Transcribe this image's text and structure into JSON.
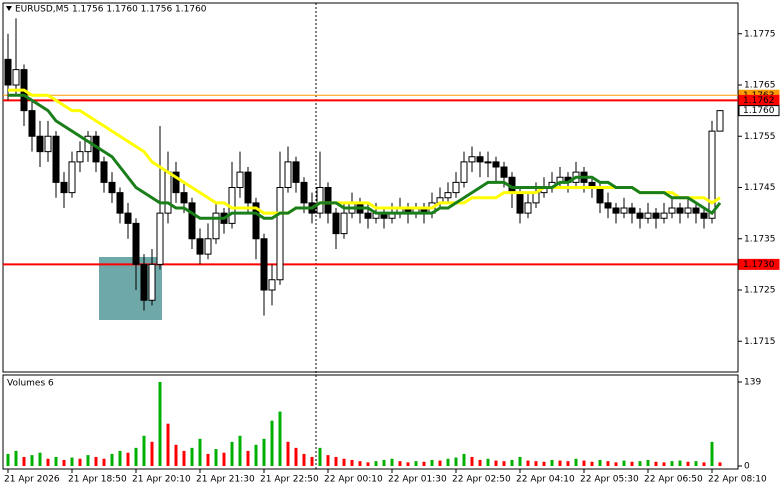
{
  "chart_data": {
    "type": "candlestick",
    "title": "EURUSD,M5  1.1756 1.1760 1.1756 1.1760",
    "volume_title": "Volumes 6",
    "categories": [
      "21 Apr 2026",
      null,
      null,
      null,
      null,
      null,
      null,
      null,
      "21 Apr 18:50",
      null,
      null,
      null,
      null,
      null,
      null,
      null,
      "21 Apr 20:10",
      null,
      null,
      null,
      null,
      null,
      null,
      null,
      "21 Apr 21:30",
      null,
      null,
      null,
      null,
      null,
      null,
      null,
      "21 Apr 22:50",
      null,
      null,
      null,
      null,
      null,
      null,
      null,
      "22 Apr 00:10",
      null,
      null,
      null,
      null,
      null,
      null,
      null,
      "22 Apr 01:30",
      null,
      null,
      null,
      null,
      null,
      null,
      null,
      "22 Apr 02:50",
      null,
      null,
      null,
      null,
      null,
      null,
      null,
      "22 Apr 04:10",
      null,
      null,
      null,
      null,
      null,
      null,
      null,
      "22 Apr 05:30",
      null,
      null,
      null,
      null,
      null,
      null,
      null,
      "22 Apr 06:50",
      null,
      null,
      null,
      null,
      null,
      null,
      null,
      "22 Apr 08:10",
      null
    ],
    "ohlc": [
      [
        1.177,
        1.1775,
        1.1762,
        1.1765
      ],
      [
        1.1765,
        1.1778,
        1.1763,
        1.1768
      ],
      [
        1.1768,
        1.1769,
        1.1757,
        1.176
      ],
      [
        1.176,
        1.1762,
        1.1752,
        1.1755
      ],
      [
        1.1755,
        1.1758,
        1.1749,
        1.1752
      ],
      [
        1.1752,
        1.1758,
        1.175,
        1.1755
      ],
      [
        1.1755,
        1.1756,
        1.1743,
        1.1746
      ],
      [
        1.1746,
        1.1748,
        1.1741,
        1.1744
      ],
      [
        1.1744,
        1.1752,
        1.1743,
        1.175
      ],
      [
        1.175,
        1.1754,
        1.1748,
        1.1752
      ],
      [
        1.1752,
        1.1756,
        1.175,
        1.1755
      ],
      [
        1.1755,
        1.1756,
        1.1748,
        1.175
      ],
      [
        1.175,
        1.1751,
        1.1744,
        1.1746
      ],
      [
        1.1746,
        1.1748,
        1.1742,
        1.1744
      ],
      [
        1.1744,
        1.1745,
        1.1738,
        1.174
      ],
      [
        1.174,
        1.1742,
        1.1735,
        1.1738
      ],
      [
        1.1738,
        1.1739,
        1.1725,
        1.173
      ],
      [
        1.173,
        1.1732,
        1.1721,
        1.1723
      ],
      [
        1.1723,
        1.1733,
        1.1722,
        1.173
      ],
      [
        1.173,
        1.1757,
        1.1729,
        1.174
      ],
      [
        1.174,
        1.1752,
        1.1738,
        1.1748
      ],
      [
        1.1748,
        1.175,
        1.1742,
        1.1744
      ],
      [
        1.1744,
        1.1746,
        1.174,
        1.1742
      ],
      [
        1.1742,
        1.1743,
        1.1733,
        1.1735
      ],
      [
        1.1735,
        1.1737,
        1.173,
        1.1732
      ],
      [
        1.1732,
        1.1738,
        1.1731,
        1.1735
      ],
      [
        1.1735,
        1.1742,
        1.1734,
        1.174
      ],
      [
        1.174,
        1.1741,
        1.1736,
        1.1738
      ],
      [
        1.1738,
        1.175,
        1.1737,
        1.1745
      ],
      [
        1.1745,
        1.1752,
        1.1743,
        1.1748
      ],
      [
        1.1748,
        1.1749,
        1.174,
        1.1742
      ],
      [
        1.1742,
        1.1743,
        1.1731,
        1.1735
      ],
      [
        1.1735,
        1.1736,
        1.172,
        1.1725
      ],
      [
        1.1725,
        1.173,
        1.1722,
        1.1727
      ],
      [
        1.1727,
        1.1752,
        1.1726,
        1.1745
      ],
      [
        1.1745,
        1.1753,
        1.1744,
        1.175
      ],
      [
        1.175,
        1.1751,
        1.1744,
        1.1746
      ],
      [
        1.1746,
        1.1747,
        1.174,
        1.1742
      ],
      [
        1.1742,
        1.1744,
        1.1738,
        1.174
      ],
      [
        1.174,
        1.1752,
        1.1739,
        1.1745
      ],
      [
        1.1745,
        1.1746,
        1.1738,
        1.174
      ],
      [
        1.174,
        1.1741,
        1.1733,
        1.1736
      ],
      [
        1.1736,
        1.1742,
        1.1735,
        1.174
      ],
      [
        1.174,
        1.1744,
        1.1739,
        1.1742
      ],
      [
        1.1742,
        1.1743,
        1.1738,
        1.174
      ],
      [
        1.174,
        1.1742,
        1.1737,
        1.1739
      ],
      [
        1.1739,
        1.1742,
        1.1738,
        1.174
      ],
      [
        1.174,
        1.1741,
        1.1737,
        1.1739
      ],
      [
        1.1739,
        1.1742,
        1.1738,
        1.174
      ],
      [
        1.174,
        1.1743,
        1.1739,
        1.1741
      ],
      [
        1.1741,
        1.1742,
        1.1738,
        1.174
      ],
      [
        1.174,
        1.1742,
        1.1739,
        1.1741
      ],
      [
        1.1741,
        1.1742,
        1.1738,
        1.174
      ],
      [
        1.174,
        1.1744,
        1.1739,
        1.1742
      ],
      [
        1.1742,
        1.1745,
        1.1741,
        1.1743
      ],
      [
        1.1743,
        1.1746,
        1.1742,
        1.1744
      ],
      [
        1.1744,
        1.1748,
        1.1743,
        1.1746
      ],
      [
        1.1746,
        1.1752,
        1.1745,
        1.175
      ],
      [
        1.175,
        1.1753,
        1.1748,
        1.1751
      ],
      [
        1.1751,
        1.1752,
        1.1747,
        1.175
      ],
      [
        1.175,
        1.1752,
        1.1747,
        1.175
      ],
      [
        1.175,
        1.1751,
        1.1746,
        1.1749
      ],
      [
        1.1749,
        1.175,
        1.1745,
        1.1747
      ],
      [
        1.1747,
        1.1748,
        1.1741,
        1.1744
      ],
      [
        1.1744,
        1.1745,
        1.1738,
        1.174
      ],
      [
        1.174,
        1.1744,
        1.1739,
        1.1742
      ],
      [
        1.1742,
        1.1746,
        1.1741,
        1.1744
      ],
      [
        1.1744,
        1.1747,
        1.1743,
        1.1745
      ],
      [
        1.1745,
        1.1748,
        1.1744,
        1.1746
      ],
      [
        1.1746,
        1.1749,
        1.1745,
        1.1747
      ],
      [
        1.1747,
        1.1748,
        1.1744,
        1.1746
      ],
      [
        1.1746,
        1.175,
        1.1745,
        1.1748
      ],
      [
        1.1748,
        1.1749,
        1.1744,
        1.1746
      ],
      [
        1.1746,
        1.1747,
        1.1743,
        1.1745
      ],
      [
        1.1745,
        1.1746,
        1.174,
        1.1742
      ],
      [
        1.1742,
        1.1744,
        1.1739,
        1.1741
      ],
      [
        1.1741,
        1.1742,
        1.1738,
        1.174
      ],
      [
        1.174,
        1.1743,
        1.1739,
        1.1741
      ],
      [
        1.1741,
        1.1742,
        1.1738,
        1.174
      ],
      [
        1.174,
        1.1741,
        1.1737,
        1.1739
      ],
      [
        1.1739,
        1.1742,
        1.1738,
        1.174
      ],
      [
        1.174,
        1.1741,
        1.1737,
        1.1739
      ],
      [
        1.1739,
        1.1742,
        1.1738,
        1.174
      ],
      [
        1.174,
        1.1743,
        1.1739,
        1.1741
      ],
      [
        1.1741,
        1.1742,
        1.1738,
        1.174
      ],
      [
        1.174,
        1.1743,
        1.1739,
        1.1741
      ],
      [
        1.1741,
        1.1742,
        1.1738,
        1.174
      ],
      [
        1.174,
        1.1741,
        1.1737,
        1.1739
      ],
      [
        1.1739,
        1.1758,
        1.1738,
        1.1756
      ],
      [
        1.1756,
        1.176,
        1.1756,
        1.176
      ]
    ],
    "up_color": "#ffffff",
    "down_color": "#000000",
    "lines": [
      {
        "color": "#ffff00",
        "values": [
          1.1764,
          1.1764,
          1.1764,
          1.1763,
          1.1763,
          1.1763,
          1.1762,
          1.1761,
          1.176,
          1.176,
          1.1759,
          1.1758,
          1.1757,
          1.1756,
          1.1755,
          1.1754,
          1.1753,
          1.1752,
          1.175,
          1.1749,
          1.1748,
          1.1747,
          1.1746,
          1.1745,
          1.1744,
          1.1743,
          1.1742,
          1.1742,
          1.1741,
          1.1741,
          1.1741,
          1.1741,
          1.174,
          1.174,
          1.174,
          1.174,
          1.1741,
          1.1741,
          1.1741,
          1.1742,
          1.1742,
          1.1742,
          1.1742,
          1.1742,
          1.1742,
          1.1742,
          1.1741,
          1.1741,
          1.1741,
          1.1741,
          1.1741,
          1.1741,
          1.1741,
          1.1741,
          1.1742,
          1.1742,
          1.1742,
          1.1742,
          1.1743,
          1.1743,
          1.1743,
          1.1743,
          1.1744,
          1.1744,
          1.1744,
          1.1744,
          1.1744,
          1.1745,
          1.1745,
          1.1745,
          1.1745,
          1.1745,
          1.1745,
          1.1745,
          1.1745,
          1.1745,
          1.1745,
          1.1745,
          1.1745,
          1.1744,
          1.1744,
          1.1744,
          1.1744,
          1.1744,
          1.1743,
          1.1743,
          1.1743,
          1.1743,
          1.1742,
          1.1743
        ]
      },
      {
        "color": "#1a7f1a",
        "values": [
          1.1763,
          1.1763,
          1.1763,
          1.1762,
          1.1761,
          1.176,
          1.1758,
          1.1757,
          1.1756,
          1.1755,
          1.1754,
          1.1753,
          1.1752,
          1.1751,
          1.1749,
          1.1747,
          1.1745,
          1.1744,
          1.1743,
          1.1742,
          1.1742,
          1.1741,
          1.1741,
          1.174,
          1.1739,
          1.1739,
          1.1739,
          1.1739,
          1.174,
          1.174,
          1.174,
          1.174,
          1.1739,
          1.1739,
          1.174,
          1.174,
          1.1741,
          1.1741,
          1.1741,
          1.1742,
          1.1742,
          1.1742,
          1.1741,
          1.1741,
          1.1741,
          1.1741,
          1.174,
          1.174,
          1.174,
          1.174,
          1.174,
          1.174,
          1.174,
          1.174,
          1.1741,
          1.1741,
          1.1742,
          1.1743,
          1.1744,
          1.1745,
          1.1746,
          1.1746,
          1.1746,
          1.1745,
          1.1745,
          1.1745,
          1.1745,
          1.1745,
          1.1745,
          1.1746,
          1.1746,
          1.1747,
          1.1747,
          1.1747,
          1.1746,
          1.1746,
          1.1745,
          1.1745,
          1.1745,
          1.1744,
          1.1744,
          1.1744,
          1.1744,
          1.1743,
          1.1743,
          1.1743,
          1.1742,
          1.1741,
          1.174,
          1.1742
        ]
      }
    ],
    "volumes": [
      20,
      25,
      15,
      18,
      22,
      12,
      15,
      10,
      14,
      12,
      18,
      15,
      12,
      20,
      25,
      22,
      30,
      50,
      40,
      139,
      70,
      35,
      25,
      30,
      45,
      20,
      28,
      22,
      40,
      50,
      25,
      35,
      45,
      75,
      90,
      40,
      30,
      20,
      15,
      30,
      18,
      15,
      12,
      10,
      8,
      6,
      8,
      10,
      12,
      8,
      6,
      8,
      7,
      10,
      9,
      12,
      14,
      20,
      15,
      10,
      12,
      9,
      8,
      10,
      15,
      9,
      8,
      7,
      10,
      9,
      8,
      12,
      9,
      7,
      10,
      8,
      6,
      9,
      7,
      8,
      10,
      7,
      6,
      8,
      9,
      7,
      8,
      6,
      40,
      6
    ],
    "volume_up_color": "#00b000",
    "volume_down_color": "#ff0000",
    "ylim": [
      1.1709,
      1.1781
    ],
    "yticks": [
      1.1715,
      1.1725,
      1.1735,
      1.1745,
      1.1755,
      1.1765,
      1.1775
    ],
    "volume_ylim": [
      0,
      139
    ],
    "volume_yticks": [
      0,
      139
    ],
    "levels": [
      {
        "price": 1.1763,
        "color": "#ff9900",
        "tag_color": "#ff9900",
        "line": true
      },
      {
        "price": 1.1762,
        "color": "#ff0000",
        "tag_color": "#ff0000",
        "line": true
      },
      {
        "price": {
          "value": 1.176,
          "label": "1.1760"
        },
        "color": "#000000",
        "tag_color": "#ffffff",
        "line": false
      },
      {
        "price": {
          "value": 1.173,
          "label": "1.1730"
        },
        "color": "#ff0000",
        "tag_color": "#ff0000",
        "line": true
      }
    ]
  }
}
